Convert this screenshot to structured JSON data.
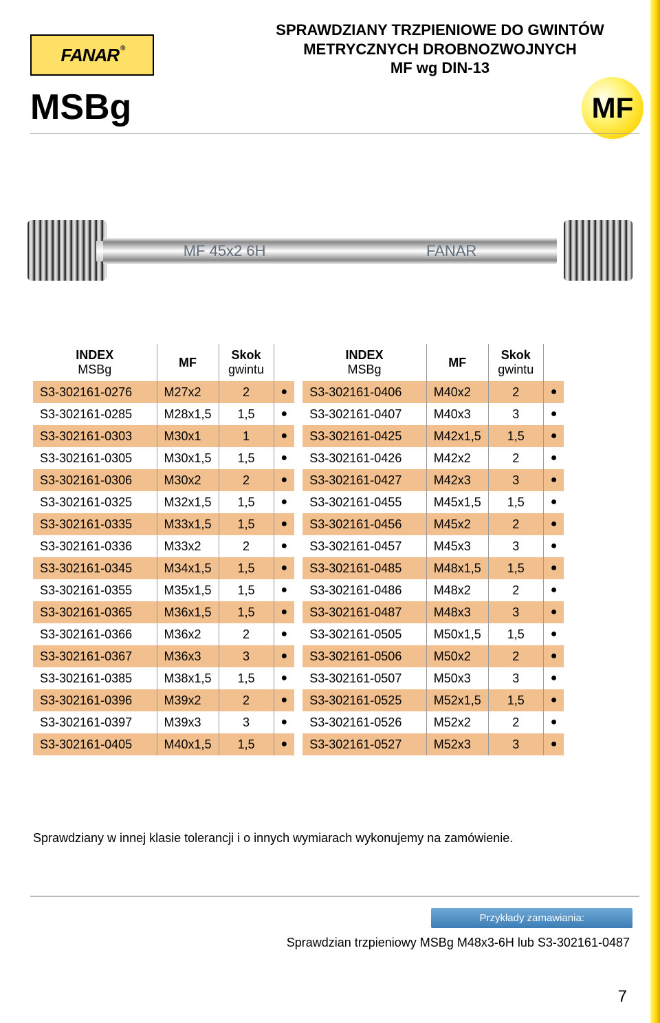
{
  "logo_text": "FANAR",
  "logo_reg": "®",
  "header_line1": "SPRAWDZIANY TRZPIENIOWE DO GWINTÓW",
  "header_line2": "METRYCZNYCH DROBNOZWOJNYCH",
  "header_line3": "MF wg DIN-13",
  "title": "MSBg",
  "mf_badge": "MF",
  "gauge_label_left": "MF 45x2   6H",
  "gauge_label_right": "FANAR",
  "table_header": {
    "index": "INDEX",
    "index_sub": "MSBg",
    "mf": "MF",
    "skok": "Skok",
    "skok_sub": "gwintu"
  },
  "table1_rows": [
    {
      "idx": "S3-302161-0276",
      "mf": "M27x2",
      "skok": "2",
      "dot": "●"
    },
    {
      "idx": "S3-302161-0285",
      "mf": "M28x1,5",
      "skok": "1,5",
      "dot": "●"
    },
    {
      "idx": "S3-302161-0303",
      "mf": "M30x1",
      "skok": "1",
      "dot": "●"
    },
    {
      "idx": "S3-302161-0305",
      "mf": "M30x1,5",
      "skok": "1,5",
      "dot": "●"
    },
    {
      "idx": "S3-302161-0306",
      "mf": "M30x2",
      "skok": "2",
      "dot": "●"
    },
    {
      "idx": "S3-302161-0325",
      "mf": "M32x1,5",
      "skok": "1,5",
      "dot": "●"
    },
    {
      "idx": "S3-302161-0335",
      "mf": "M33x1,5",
      "skok": "1,5",
      "dot": "●"
    },
    {
      "idx": "S3-302161-0336",
      "mf": "M33x2",
      "skok": "2",
      "dot": "●"
    },
    {
      "idx": "S3-302161-0345",
      "mf": "M34x1,5",
      "skok": "1,5",
      "dot": "●"
    },
    {
      "idx": "S3-302161-0355",
      "mf": "M35x1,5",
      "skok": "1,5",
      "dot": "●"
    },
    {
      "idx": "S3-302161-0365",
      "mf": "M36x1,5",
      "skok": "1,5",
      "dot": "●"
    },
    {
      "idx": "S3-302161-0366",
      "mf": "M36x2",
      "skok": "2",
      "dot": "●"
    },
    {
      "idx": "S3-302161-0367",
      "mf": "M36x3",
      "skok": "3",
      "dot": "●"
    },
    {
      "idx": "S3-302161-0385",
      "mf": "M38x1,5",
      "skok": "1,5",
      "dot": "●"
    },
    {
      "idx": "S3-302161-0396",
      "mf": "M39x2",
      "skok": "2",
      "dot": "●"
    },
    {
      "idx": "S3-302161-0397",
      "mf": "M39x3",
      "skok": "3",
      "dot": "●"
    },
    {
      "idx": "S3-302161-0405",
      "mf": "M40x1,5",
      "skok": "1,5",
      "dot": "●"
    }
  ],
  "table2_rows": [
    {
      "idx": "S3-302161-0406",
      "mf": "M40x2",
      "skok": "2",
      "dot": "●"
    },
    {
      "idx": "S3-302161-0407",
      "mf": "M40x3",
      "skok": "3",
      "dot": "●"
    },
    {
      "idx": "S3-302161-0425",
      "mf": "M42x1,5",
      "skok": "1,5",
      "dot": "●"
    },
    {
      "idx": "S3-302161-0426",
      "mf": "M42x2",
      "skok": "2",
      "dot": "●"
    },
    {
      "idx": "S3-302161-0427",
      "mf": "M42x3",
      "skok": "3",
      "dot": "●"
    },
    {
      "idx": "S3-302161-0455",
      "mf": "M45x1,5",
      "skok": "1,5",
      "dot": "●"
    },
    {
      "idx": "S3-302161-0456",
      "mf": "M45x2",
      "skok": "2",
      "dot": "●"
    },
    {
      "idx": "S3-302161-0457",
      "mf": "M45x3",
      "skok": "3",
      "dot": "●"
    },
    {
      "idx": "S3-302161-0485",
      "mf": "M48x1,5",
      "skok": "1,5",
      "dot": "●"
    },
    {
      "idx": "S3-302161-0486",
      "mf": "M48x2",
      "skok": "2",
      "dot": "●"
    },
    {
      "idx": "S3-302161-0487",
      "mf": "M48x3",
      "skok": "3",
      "dot": "●"
    },
    {
      "idx": "S3-302161-0505",
      "mf": "M50x1,5",
      "skok": "1,5",
      "dot": "●"
    },
    {
      "idx": "S3-302161-0506",
      "mf": "M50x2",
      "skok": "2",
      "dot": "●"
    },
    {
      "idx": "S3-302161-0507",
      "mf": "M50x3",
      "skok": "3",
      "dot": "●"
    },
    {
      "idx": "S3-302161-0525",
      "mf": "M52x1,5",
      "skok": "1,5",
      "dot": "●"
    },
    {
      "idx": "S3-302161-0526",
      "mf": "M52x2",
      "skok": "2",
      "dot": "●"
    },
    {
      "idx": "S3-302161-0527",
      "mf": "M52x3",
      "skok": "3",
      "dot": "●"
    }
  ],
  "footnote": "Sprawdziany w innej klasie tolerancji i o innych wymiarach wykonujemy na zamówienie.",
  "order_label": "Przykłady zamawiania:",
  "order_example": "Sprawdzian trzpieniowy MSBg M48x3-6H lub S3-302161-0487",
  "page_number": "7",
  "colors": {
    "stripe_color": "#f2c08e",
    "yellow_grad_start": "#fff68a",
    "yellow_grad_end": "#d4a800",
    "blue_grad_start": "#6fa8d6",
    "blue_grad_end": "#3d7eb5"
  }
}
